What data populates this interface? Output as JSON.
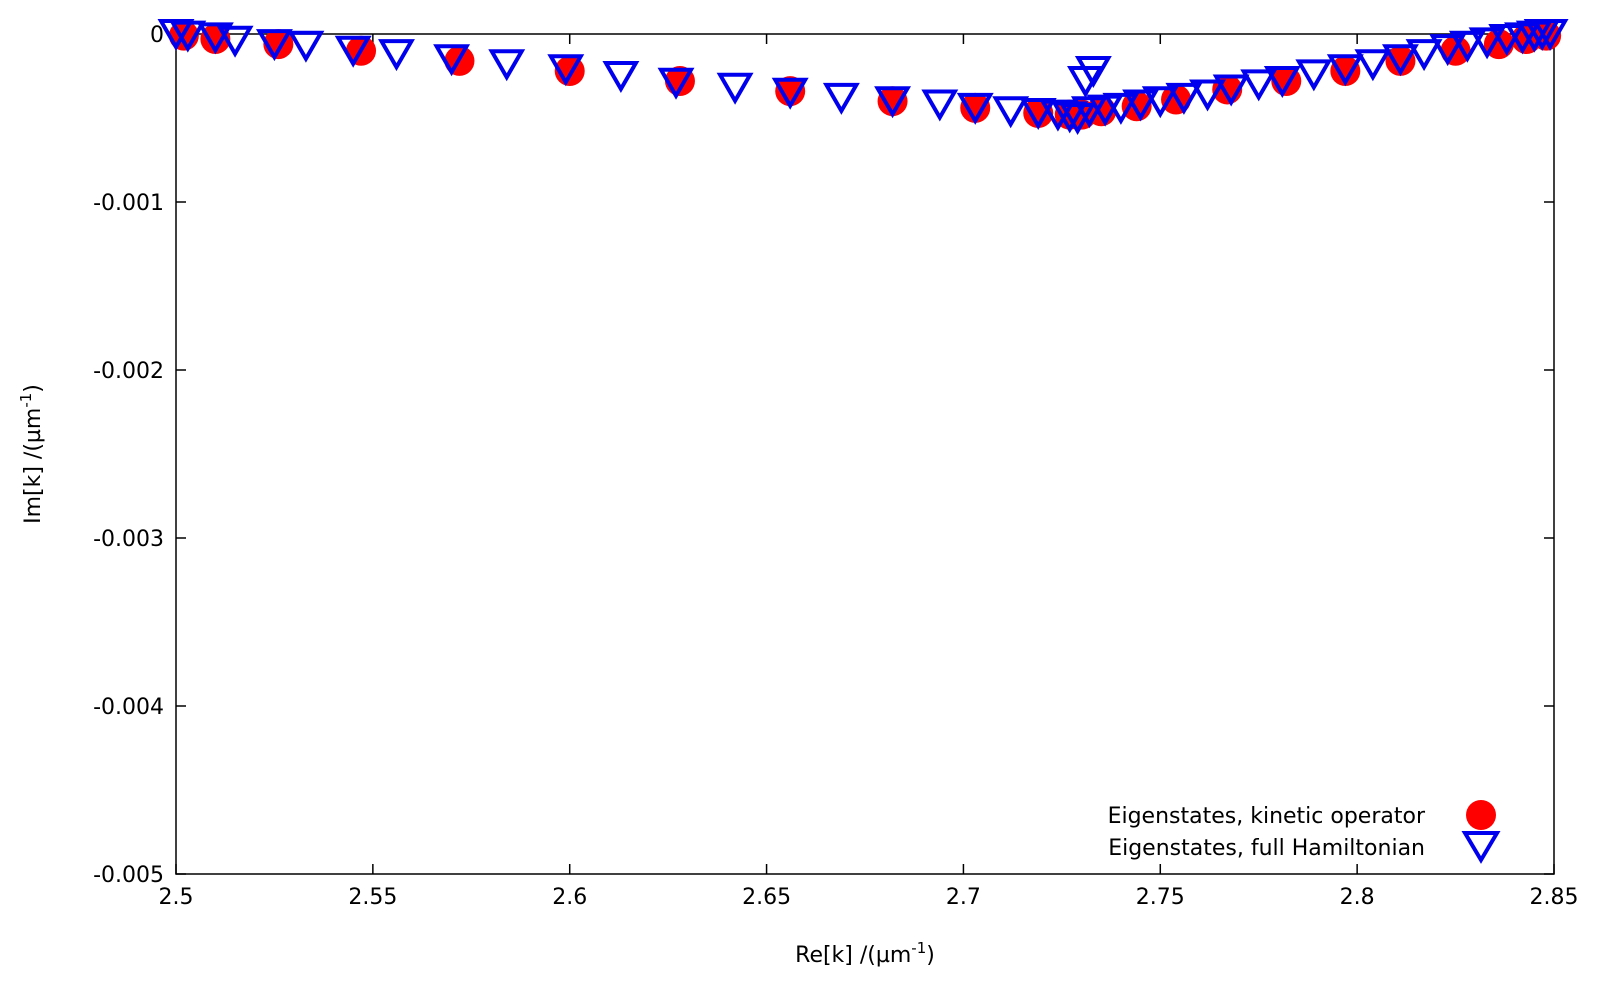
{
  "chart_data": {
    "type": "scatter",
    "title": "",
    "xlabel": "Re[k] /(µm",
    "xlabel_sup": "-1",
    "xlabel_close": ")",
    "ylabel": "Im[k] /(µm",
    "ylabel_sup": "-1",
    "ylabel_close": ")",
    "xlim": [
      2.5,
      2.85
    ],
    "ylim": [
      -0.005,
      0
    ],
    "x_ticks": [
      2.5,
      2.55,
      2.6,
      2.65,
      2.7,
      2.75,
      2.8,
      2.85
    ],
    "x_tick_labels": [
      "2.5",
      "2.55",
      "2.6",
      "2.65",
      "2.7",
      "2.75",
      "2.8",
      "2.85"
    ],
    "y_ticks": [
      0,
      -0.001,
      -0.002,
      -0.003,
      -0.004,
      -0.005
    ],
    "y_tick_labels": [
      "0",
      "-0.001",
      "-0.002",
      "-0.003",
      "-0.004",
      "-0.005"
    ],
    "grid": false,
    "legend_position": "bottom-right",
    "series": [
      {
        "name": "Eigenstates, kinetic operator",
        "marker": "filled-circle",
        "color": "#ff0000",
        "x": [
          2.502,
          2.51,
          2.526,
          2.547,
          2.572,
          2.6,
          2.628,
          2.656,
          2.682,
          2.703,
          2.719,
          2.727,
          2.73,
          2.735,
          2.744,
          2.754,
          2.767,
          2.782,
          2.797,
          2.811,
          2.825,
          2.836,
          2.843,
          2.848
        ],
        "y": [
          -1e-05,
          -3e-05,
          -6e-05,
          -0.0001,
          -0.00016,
          -0.00022,
          -0.00028,
          -0.00034,
          -0.0004,
          -0.00044,
          -0.00047,
          -0.00048,
          -0.00048,
          -0.00046,
          -0.00043,
          -0.00039,
          -0.00033,
          -0.00028,
          -0.00022,
          -0.00016,
          -0.0001,
          -6e-05,
          -3e-05,
          -1e-05
        ]
      },
      {
        "name": "Eigenstates, full Hamiltonian",
        "marker": "open-down-triangle",
        "color": "#0000ee",
        "x": [
          2.5,
          2.503,
          2.51,
          2.515,
          2.525,
          2.533,
          2.545,
          2.556,
          2.57,
          2.584,
          2.599,
          2.613,
          2.627,
          2.642,
          2.656,
          2.669,
          2.682,
          2.694,
          2.703,
          2.712,
          2.719,
          2.724,
          2.727,
          2.729,
          2.731,
          2.733,
          2.732,
          2.736,
          2.74,
          2.745,
          2.75,
          2.756,
          2.762,
          2.768,
          2.775,
          2.781,
          2.789,
          2.797,
          2.804,
          2.811,
          2.817,
          2.823,
          2.828,
          2.833,
          2.838,
          2.842,
          2.845,
          2.847,
          2.849
        ],
        "y": [
          0.0,
          -1e-05,
          -2e-05,
          -4e-05,
          -6e-05,
          -7e-05,
          -0.0001,
          -0.00012,
          -0.00015,
          -0.00018,
          -0.00021,
          -0.00025,
          -0.00029,
          -0.00032,
          -0.00035,
          -0.00038,
          -0.0004,
          -0.00042,
          -0.00044,
          -0.00046,
          -0.00047,
          -0.00048,
          -0.00049,
          -0.0005,
          -0.00028,
          -0.00022,
          -0.00046,
          -0.00045,
          -0.00044,
          -0.00042,
          -0.0004,
          -0.00038,
          -0.00036,
          -0.00033,
          -0.0003,
          -0.00028,
          -0.00024,
          -0.00021,
          -0.00018,
          -0.00015,
          -0.00012,
          -9e-05,
          -7e-05,
          -5e-05,
          -3e-05,
          -2e-05,
          -1e-05,
          0.0,
          0.0
        ]
      }
    ]
  }
}
